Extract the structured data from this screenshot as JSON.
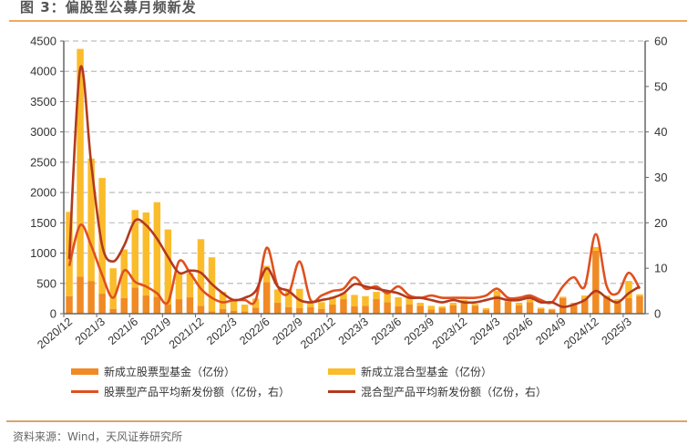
{
  "title": "图 3：偏股型公募月频新发",
  "source": "资料来源：Wind，天风证券研究所",
  "colors": {
    "equity_bar": "#f08a24",
    "mixed_bar": "#fbbc2c",
    "equity_line": "#e0501e",
    "mixed_line": "#b23a1e",
    "grid": "#bdbdbd",
    "axis": "#666666",
    "rule": "#f0a860"
  },
  "legend": {
    "equity_bar": "新成立股票型基金（亿份）",
    "mixed_bar": "新成立混合型基金（亿份）",
    "equity_line": "股票型产品平均新发份额（亿份，右）",
    "mixed_line": "混合型产品平均新发份额（亿份，右）"
  },
  "chart_data": {
    "type": "bar+line",
    "title": "偏股型公募月频新发",
    "stacked": true,
    "left_axis": {
      "min": 0,
      "max": 4500,
      "ticks": [
        0,
        500,
        1000,
        1500,
        2000,
        2500,
        3000,
        3500,
        4000,
        4500
      ]
    },
    "right_axis": {
      "min": 0,
      "max": 60,
      "ticks": [
        0,
        10,
        20,
        30,
        40,
        50,
        60
      ]
    },
    "x_tick_labels": [
      "2020/12",
      "2021/3",
      "2021/6",
      "2021/9",
      "2021/12",
      "2022/3",
      "2022/6",
      "2022/9",
      "2022/12",
      "2023/3",
      "2023/6",
      "2023/9",
      "2023/12",
      "2024/3",
      "2024/6",
      "2024/9",
      "2024/12",
      "2025/3"
    ],
    "categories": [
      "2020/12",
      "2021/1",
      "2021/2",
      "2021/3",
      "2021/4",
      "2021/5",
      "2021/6",
      "2021/7",
      "2021/8",
      "2021/9",
      "2021/10",
      "2021/11",
      "2021/12",
      "2022/1",
      "2022/2",
      "2022/3",
      "2022/4",
      "2022/5",
      "2022/6",
      "2022/7",
      "2022/8",
      "2022/9",
      "2022/10",
      "2022/11",
      "2022/12",
      "2023/1",
      "2023/2",
      "2023/3",
      "2023/4",
      "2023/5",
      "2023/6",
      "2023/7",
      "2023/8",
      "2023/9",
      "2023/10",
      "2023/11",
      "2023/12",
      "2024/1",
      "2024/2",
      "2024/3",
      "2024/4",
      "2024/5",
      "2024/6",
      "2024/7",
      "2024/8",
      "2024/9",
      "2024/10",
      "2024/11",
      "2024/12",
      "2025/1",
      "2025/2",
      "2025/3",
      "2025/4"
    ],
    "series": [
      {
        "name": "新成立股票型基金（亿份）",
        "type": "bar",
        "axis": "left",
        "values": [
          290,
          610,
          540,
          330,
          80,
          260,
          430,
          300,
          280,
          150,
          240,
          270,
          130,
          40,
          80,
          50,
          40,
          100,
          520,
          180,
          110,
          90,
          110,
          80,
          150,
          240,
          120,
          130,
          240,
          190,
          120,
          150,
          130,
          70,
          90,
          140,
          200,
          130,
          60,
          300,
          200,
          140,
          190,
          80,
          60,
          260,
          150,
          250,
          1040,
          280,
          180,
          260,
          290
        ]
      },
      {
        "name": "新成立混合型基金（亿份）",
        "type": "bar",
        "axis": "left",
        "values": [
          1390,
          3760,
          2020,
          1910,
          670,
          800,
          1280,
          1370,
          1560,
          1240,
          420,
          400,
          1100,
          890,
          280,
          170,
          110,
          150,
          270,
          220,
          300,
          320,
          90,
          110,
          130,
          100,
          190,
          160,
          120,
          170,
          150,
          110,
          50,
          60,
          30,
          40,
          30,
          30,
          30,
          80,
          30,
          40,
          50,
          20,
          20,
          20,
          30,
          50,
          60,
          20,
          60,
          280,
          30
        ]
      },
      {
        "name": "股票型产品平均新发份额（亿份，右）",
        "type": "line",
        "axis": "right",
        "values": [
          10.5,
          19.5,
          15,
          8.5,
          3.5,
          9.5,
          7,
          6,
          4.5,
          2.5,
          11.5,
          9,
          5.5,
          3.5,
          2.5,
          3,
          3,
          3,
          14.5,
          6,
          4.5,
          11.5,
          3,
          4,
          5,
          5.5,
          8,
          5.5,
          6,
          4.5,
          6,
          4,
          3.5,
          4,
          3.5,
          3.5,
          3.5,
          3.5,
          4,
          5.5,
          3.5,
          3.5,
          4,
          3,
          2.5,
          6,
          8,
          6,
          17.5,
          6,
          4.5,
          9,
          5.5
        ]
      },
      {
        "name": "混合型产品平均新发份额（亿份，右）",
        "type": "line",
        "axis": "right",
        "values": [
          12,
          54,
          33,
          15,
          11.5,
          15,
          20.5,
          19.5,
          16.5,
          12.5,
          9,
          9.5,
          9,
          6.5,
          4.5,
          3,
          3.5,
          5,
          10,
          6,
          5,
          3,
          2.5,
          3,
          3.5,
          4.5,
          6.5,
          6,
          5.5,
          5,
          4.5,
          3.5,
          3.5,
          3,
          2.5,
          3,
          2.5,
          2.5,
          3,
          3.5,
          3,
          3,
          3.5,
          2.5,
          2.5,
          1.5,
          2,
          3,
          5,
          3.5,
          2.5,
          4.5,
          6
        ]
      }
    ],
    "legend_position": "bottom",
    "grid": "horizontal dashed"
  }
}
